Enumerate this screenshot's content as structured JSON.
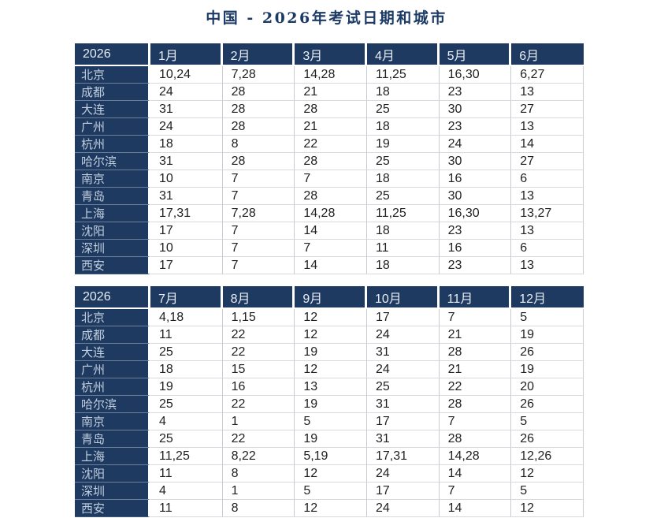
{
  "title": "中国 - 2026年考试日期和城市",
  "colors": {
    "header_navy": "#1e3a61",
    "title_navy": "#1c3a66",
    "header_text": "#e8eef6",
    "city_text": "#c2cfdf",
    "cell_text": "#1f1f1f",
    "grid_line": "#c6ccd2"
  },
  "tables": [
    {
      "year": "2026",
      "months": [
        "1月",
        "2月",
        "3月",
        "4月",
        "5月",
        "6月"
      ],
      "rows": [
        {
          "city": "北京",
          "values": [
            "10,24",
            "7,28",
            "14,28",
            "11,25",
            "16,30",
            "6,27"
          ]
        },
        {
          "city": "成都",
          "values": [
            "24",
            "28",
            "21",
            "18",
            "23",
            "13"
          ]
        },
        {
          "city": "大连",
          "values": [
            "31",
            "28",
            "28",
            "25",
            "30",
            "27"
          ]
        },
        {
          "city": "广州",
          "values": [
            "24",
            "28",
            "21",
            "18",
            "23",
            "13"
          ]
        },
        {
          "city": "杭州",
          "values": [
            "18",
            "8",
            "22",
            "19",
            "24",
            "14"
          ]
        },
        {
          "city": "哈尔滨",
          "values": [
            "31",
            "28",
            "28",
            "25",
            "30",
            "27"
          ]
        },
        {
          "city": "南京",
          "values": [
            "10",
            "7",
            "7",
            "18",
            "16",
            "6"
          ]
        },
        {
          "city": "青岛",
          "values": [
            "31",
            "7",
            "28",
            "25",
            "30",
            "13"
          ]
        },
        {
          "city": "上海",
          "values": [
            "17,31",
            "7,28",
            "14,28",
            "11,25",
            "16,30",
            "13,27"
          ]
        },
        {
          "city": "沈阳",
          "values": [
            "17",
            "7",
            "14",
            "18",
            "23",
            "13"
          ]
        },
        {
          "city": "深圳",
          "values": [
            "10",
            "7",
            "7",
            "11",
            "16",
            "6"
          ]
        },
        {
          "city": "西安",
          "values": [
            "17",
            "7",
            "14",
            "18",
            "23",
            "13"
          ]
        }
      ]
    },
    {
      "year": "2026",
      "months": [
        "7月",
        "8月",
        "9月",
        "10月",
        "11月",
        "12月"
      ],
      "rows": [
        {
          "city": "北京",
          "values": [
            "4,18",
            "1,15",
            "12",
            "17",
            "7",
            "5"
          ]
        },
        {
          "city": "成都",
          "values": [
            "11",
            "22",
            "12",
            "24",
            "21",
            "19"
          ]
        },
        {
          "city": "大连",
          "values": [
            "25",
            "22",
            "19",
            "31",
            "28",
            "26"
          ]
        },
        {
          "city": "广州",
          "values": [
            "18",
            "15",
            "12",
            "24",
            "21",
            "19"
          ]
        },
        {
          "city": "杭州",
          "values": [
            "19",
            "16",
            "13",
            "25",
            "22",
            "20"
          ]
        },
        {
          "city": "哈尔滨",
          "values": [
            "25",
            "22",
            "19",
            "31",
            "28",
            "26"
          ]
        },
        {
          "city": "南京",
          "values": [
            "4",
            "1",
            "5",
            "17",
            "7",
            "5"
          ]
        },
        {
          "city": "青岛",
          "values": [
            "25",
            "22",
            "19",
            "31",
            "28",
            "26"
          ]
        },
        {
          "city": "上海",
          "values": [
            "11,25",
            "8,22",
            "5,19",
            "17,31",
            "14,28",
            "12,26"
          ]
        },
        {
          "city": "沈阳",
          "values": [
            "11",
            "8",
            "12",
            "24",
            "14",
            "12"
          ]
        },
        {
          "city": "深圳",
          "values": [
            "4",
            "1",
            "5",
            "17",
            "7",
            "5"
          ]
        },
        {
          "city": "西安",
          "values": [
            "11",
            "8",
            "12",
            "24",
            "14",
            "12"
          ]
        }
      ]
    }
  ]
}
